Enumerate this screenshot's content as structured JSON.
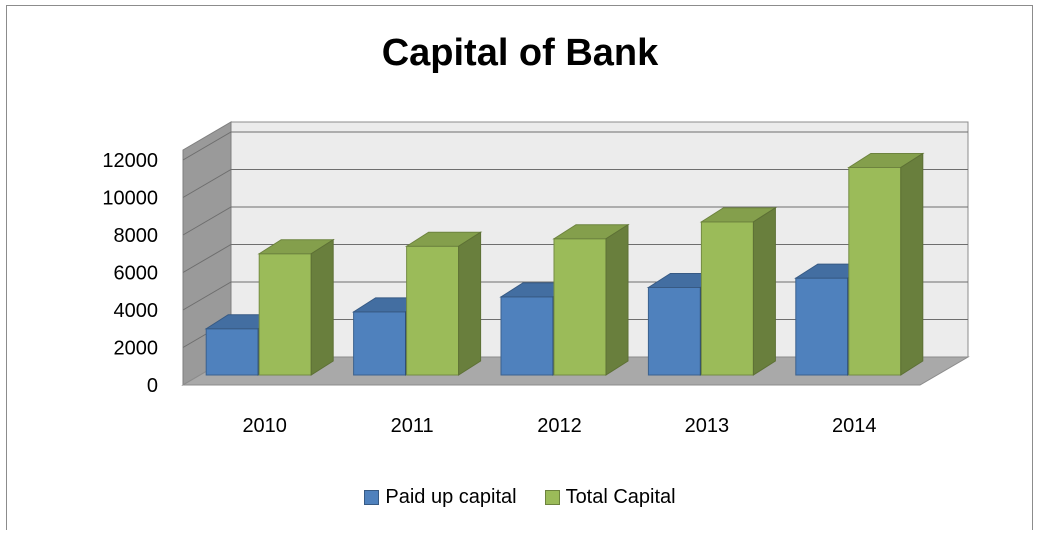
{
  "chart_data": {
    "type": "bar",
    "title": "Capital of Bank",
    "categories": [
      "2010",
      "2011",
      "2012",
      "2013",
      "2014"
    ],
    "series": [
      {
        "name": "Paid up capital",
        "values": [
          3000,
          3900,
          4700,
          5200,
          5700
        ],
        "color": "#4f81bd"
      },
      {
        "name": "Total Capital",
        "values": [
          7000,
          7400,
          7800,
          8700,
          11600
        ],
        "color": "#9bbb59"
      }
    ],
    "ylim": [
      0,
      12000
    ],
    "yticks": [
      "0",
      "2000",
      "4000",
      "6000",
      "8000",
      "10000",
      "12000"
    ],
    "grid": true,
    "legend_position": "bottom"
  }
}
